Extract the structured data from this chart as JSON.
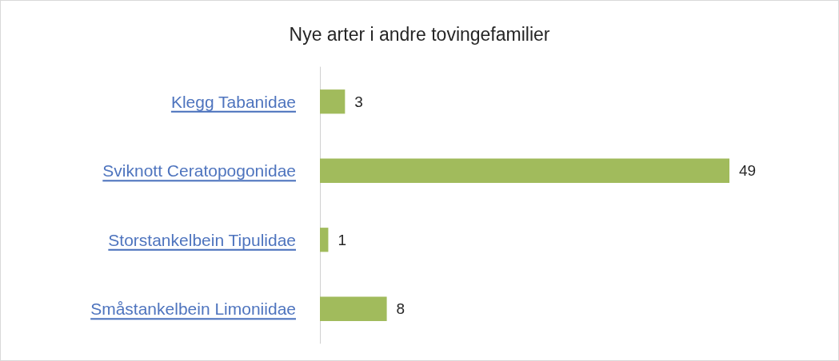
{
  "chart_data": {
    "type": "bar",
    "orientation": "horizontal",
    "title": "Nye arter i andre tovingefamilier",
    "categories": [
      "Klegg Tabanidae",
      "Sviknott Ceratopogonidae",
      "Storstankelbein Tipulidae",
      "Småstankelbein Limoniidae"
    ],
    "values": [
      3,
      49,
      1,
      8
    ],
    "color": "#a1bb5c",
    "data_labels": true
  }
}
